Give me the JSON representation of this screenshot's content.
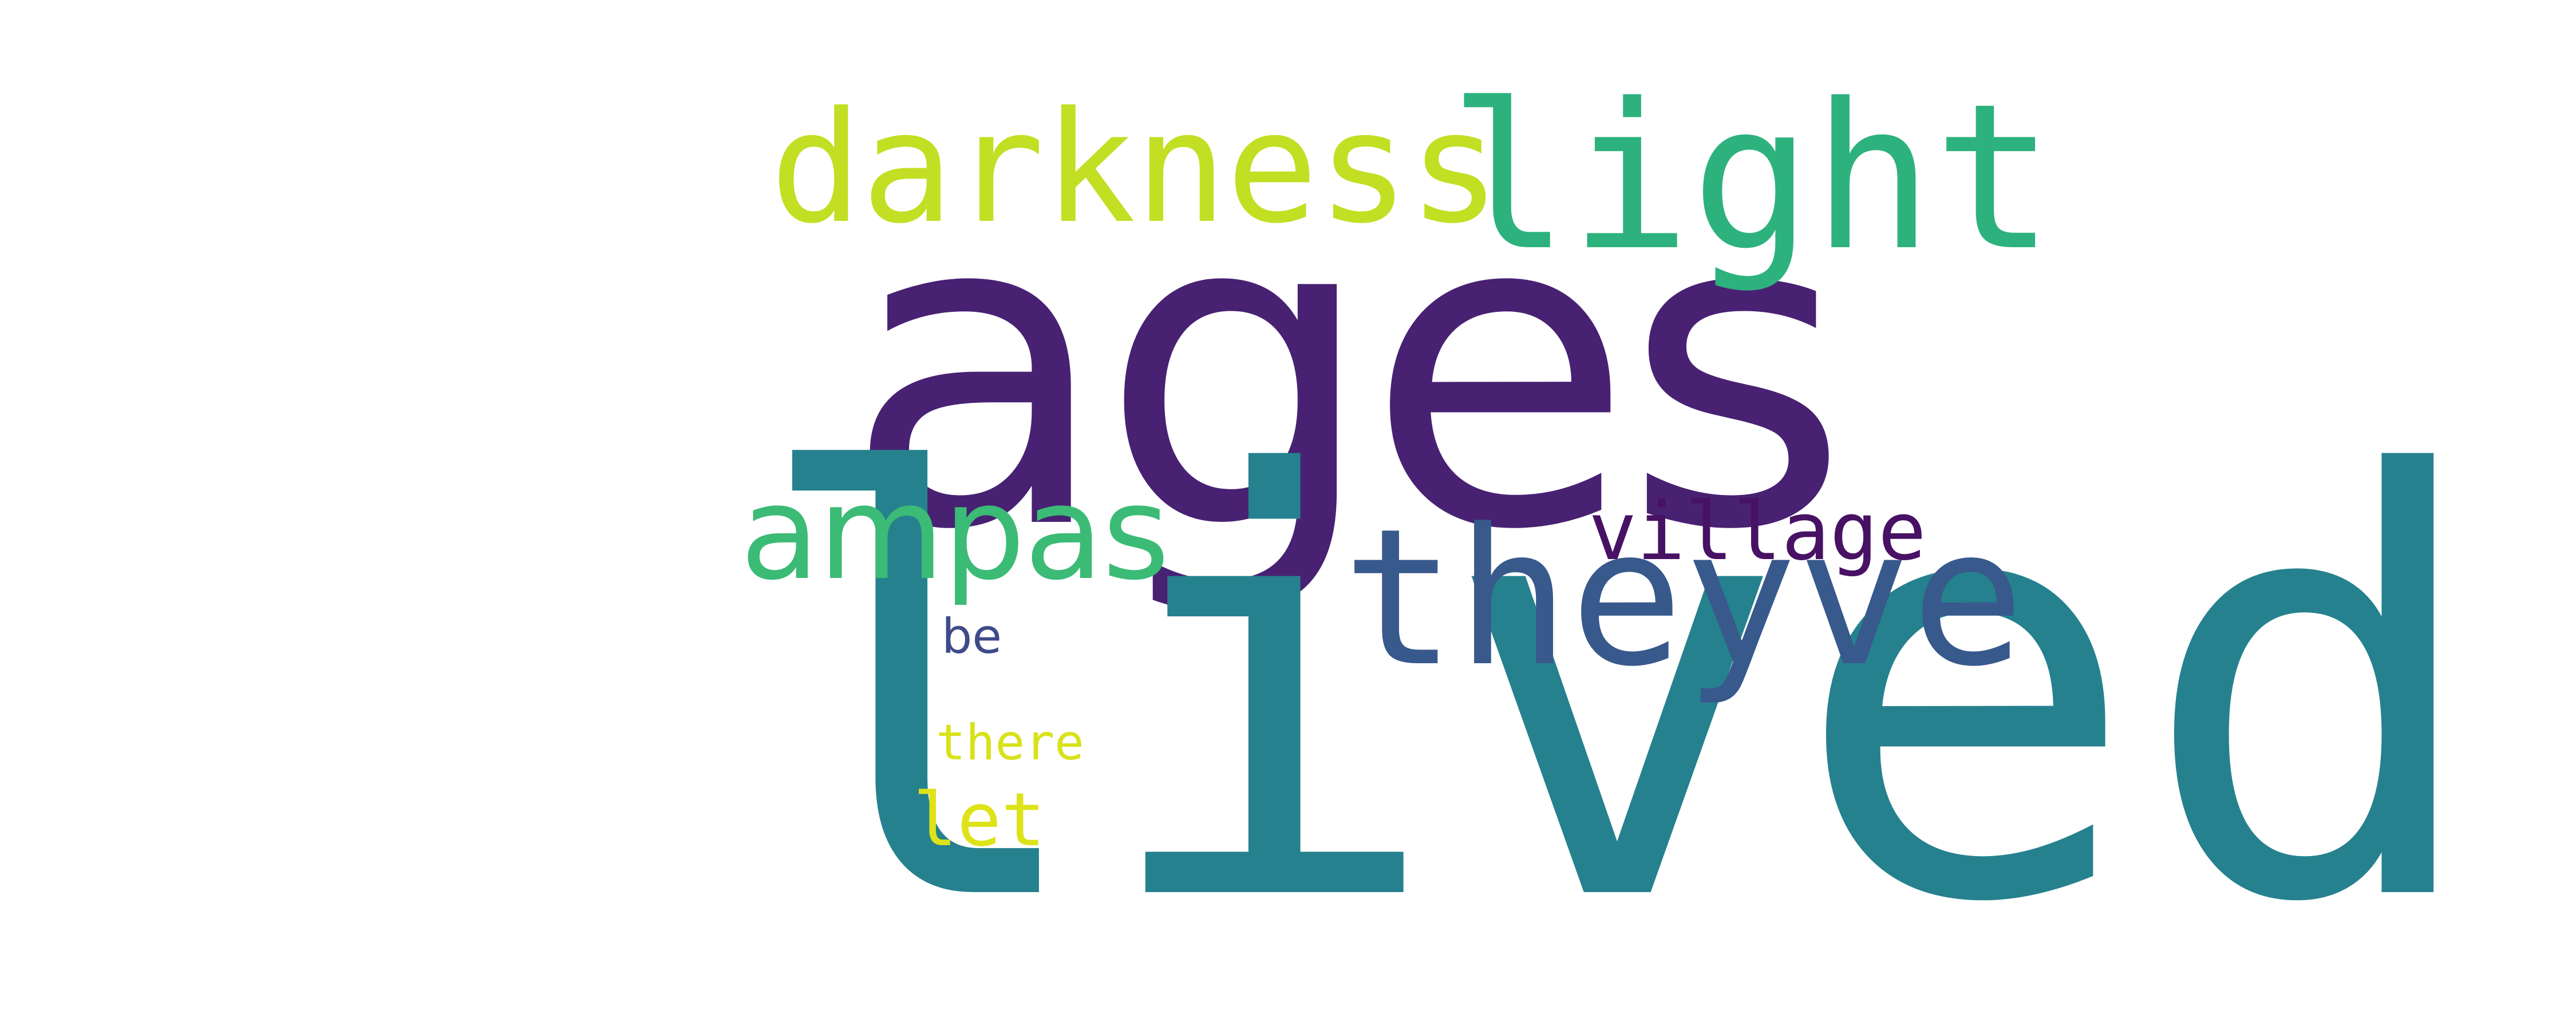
{
  "words": {
    "ages": {
      "text": "ages",
      "color": "#482173"
    },
    "lived": {
      "text": "lived",
      "color": "#26818e"
    },
    "darkness": {
      "text": "darkness",
      "color": "#c2df23"
    },
    "light": {
      "text": "light",
      "color": "#2db27d"
    },
    "ampas": {
      "text": "ampas",
      "color": "#3bbb75"
    },
    "theyve": {
      "text": "theyve",
      "color": "#38598c"
    },
    "village": {
      "text": "village",
      "color": "#471164"
    },
    "be": {
      "text": "be",
      "color": "#3e4a89"
    },
    "there": {
      "text": "there",
      "color": "#d8e219"
    },
    "let": {
      "text": "let",
      "color": "#dde318"
    }
  }
}
